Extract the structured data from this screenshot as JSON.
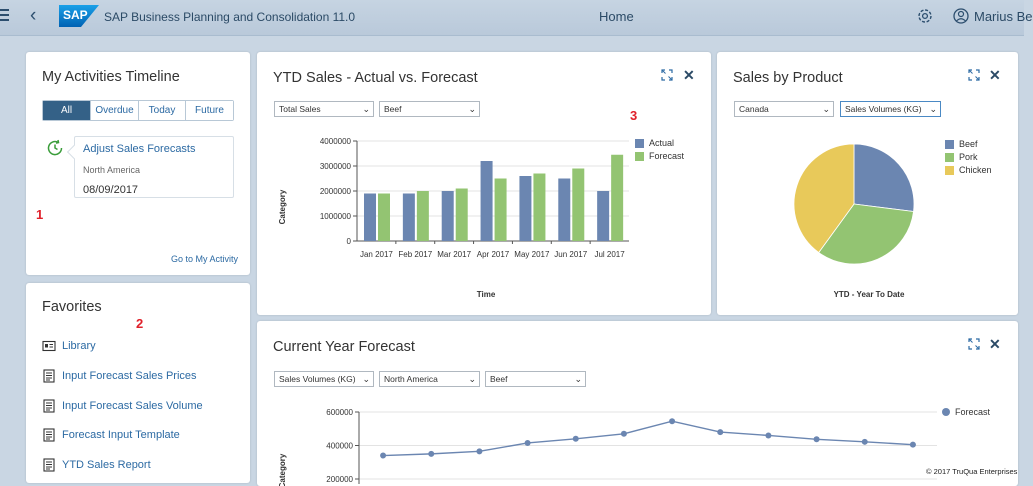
{
  "shell": {
    "logo_text": "SAP",
    "app_title": "SAP Business Planning and Consolidation 11.0",
    "home_label": "Home",
    "user_name": "Marius Be"
  },
  "activities": {
    "title": "My Activities Timeline",
    "filters": [
      "All",
      "Overdue",
      "Today",
      "Future"
    ],
    "active_filter": "All",
    "item": {
      "link": "Adjust Sales Forecasts",
      "region": "North America",
      "date": "08/09/2017"
    },
    "marker": "1",
    "goto": "Go to My Activity"
  },
  "favorites": {
    "title": "Favorites",
    "marker": "2",
    "items": [
      {
        "label": "Library",
        "icon": "library-icon"
      },
      {
        "label": "Input Forecast Sales Prices",
        "icon": "report-icon"
      },
      {
        "label": "Input Forecast Sales Volume",
        "icon": "report-icon"
      },
      {
        "label": "Forecast Input Template",
        "icon": "report-icon"
      },
      {
        "label": "YTD Sales Report",
        "icon": "report-icon"
      }
    ]
  },
  "ytd": {
    "title": "YTD Sales - Actual vs. Forecast",
    "marker": "3",
    "measure": "Total Sales",
    "product": "Beef",
    "colors": {
      "actual": "#6b86b1",
      "forecast": "#93c472"
    }
  },
  "product": {
    "title": "Sales by Product",
    "country": "Canada",
    "measure": "Sales Volumes (KG)",
    "colors": {
      "beef": "#6b86b1",
      "pork": "#93c472",
      "chicken": "#e8c95a"
    }
  },
  "cyf": {
    "title": "Current Year Forecast",
    "measure": "Sales Volumes (KG)",
    "region": "North America",
    "product": "Beef",
    "color": "#6b86b1"
  },
  "copyright": "© 2017 TruQua Enterprises",
  "chart_data": [
    {
      "type": "bar",
      "title": "",
      "xlabel": "Time",
      "ylabel": "Category",
      "ylim": [
        0,
        4000000
      ],
      "yticks": [
        "4000000",
        "3000000",
        "2000000",
        "1000000",
        "0"
      ],
      "categories": [
        "Jan 2017",
        "Feb 2017",
        "Mar 2017",
        "Apr 2017",
        "May 2017",
        "Jun 2017",
        "Jul 2017"
      ],
      "series": [
        {
          "name": "Actual",
          "values": [
            1900000,
            1900000,
            2000000,
            3200000,
            2600000,
            2500000,
            2000000
          ]
        },
        {
          "name": "Forecast",
          "values": [
            1900000,
            2000000,
            2100000,
            2500000,
            2700000,
            2900000,
            3450000
          ]
        }
      ],
      "legend": "top-right",
      "grid": true
    },
    {
      "type": "pie",
      "title": "",
      "xlabel": "YTD - Year To Date",
      "slices": [
        {
          "name": "Beef",
          "value": 27
        },
        {
          "name": "Pork",
          "value": 33
        },
        {
          "name": "Chicken",
          "value": 40
        }
      ],
      "legend": "top-right"
    },
    {
      "type": "line",
      "title": "",
      "ylabel": "Category",
      "ylim": [
        200000,
        600000
      ],
      "yticks": [
        "600000",
        "400000",
        "200000"
      ],
      "series": [
        {
          "name": "Forecast",
          "values": [
            340000,
            350000,
            365000,
            415000,
            440000,
            470000,
            545000,
            480000,
            460000,
            437000,
            422000,
            405000
          ]
        }
      ],
      "legend": "top-right",
      "grid": true
    }
  ]
}
